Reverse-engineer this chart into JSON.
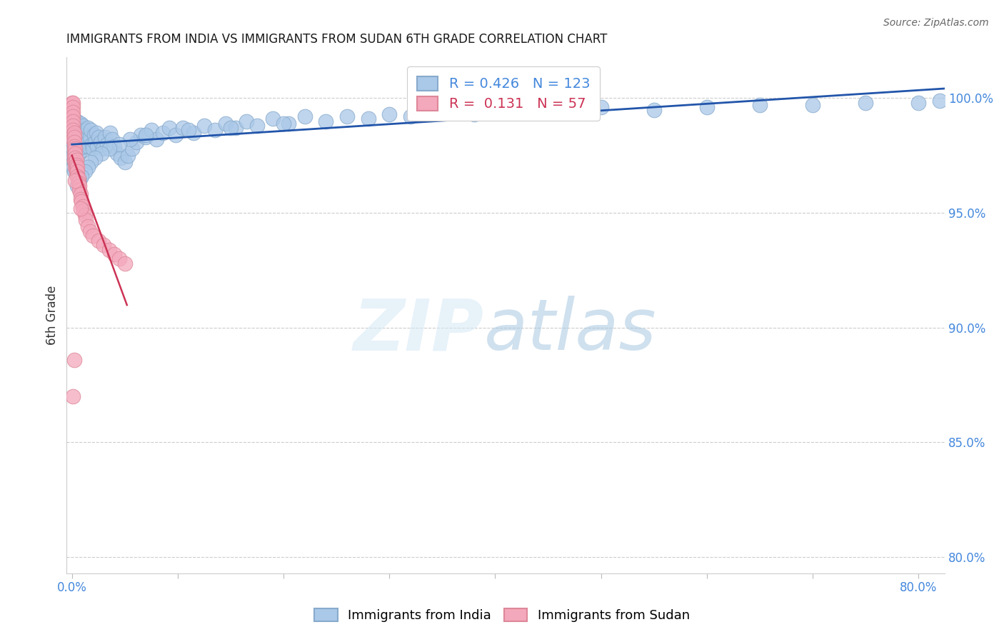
{
  "title": "IMMIGRANTS FROM INDIA VS IMMIGRANTS FROM SUDAN 6TH GRADE CORRELATION CHART",
  "source": "Source: ZipAtlas.com",
  "ylabel": "6th Grade",
  "india_R": 0.426,
  "india_N": 123,
  "sudan_R": 0.131,
  "sudan_N": 57,
  "india_color": "#aac8e8",
  "india_edge_color": "#88aacc",
  "sudan_color": "#f4a8bc",
  "sudan_edge_color": "#dd8899",
  "india_line_color": "#2255aa",
  "sudan_line_color": "#cc3355",
  "grid_color": "#cccccc",
  "title_color": "#1a1a1a",
  "tick_color": "#4488dd",
  "bg_color": "#ffffff",
  "xmin": 0.0,
  "xmax": 0.8,
  "ymin": 0.793,
  "ymax": 1.018,
  "yticks": [
    0.8,
    0.85,
    0.9,
    0.95,
    1.0
  ],
  "india_x": [
    0.001,
    0.001,
    0.001,
    0.001,
    0.001,
    0.002,
    0.002,
    0.002,
    0.002,
    0.002,
    0.002,
    0.002,
    0.003,
    0.003,
    0.003,
    0.003,
    0.003,
    0.004,
    0.004,
    0.004,
    0.004,
    0.004,
    0.005,
    0.005,
    0.005,
    0.005,
    0.006,
    0.006,
    0.006,
    0.006,
    0.007,
    0.007,
    0.007,
    0.008,
    0.008,
    0.008,
    0.009,
    0.009,
    0.01,
    0.01,
    0.01,
    0.011,
    0.011,
    0.012,
    0.012,
    0.013,
    0.014,
    0.015,
    0.015,
    0.016,
    0.017,
    0.018,
    0.019,
    0.02,
    0.021,
    0.022,
    0.023,
    0.024,
    0.025,
    0.027,
    0.029,
    0.031,
    0.033,
    0.036,
    0.038,
    0.04,
    0.043,
    0.046,
    0.05,
    0.053,
    0.057,
    0.061,
    0.065,
    0.07,
    0.075,
    0.08,
    0.086,
    0.092,
    0.098,
    0.105,
    0.115,
    0.125,
    0.135,
    0.145,
    0.155,
    0.165,
    0.175,
    0.19,
    0.205,
    0.22,
    0.24,
    0.26,
    0.28,
    0.3,
    0.32,
    0.35,
    0.38,
    0.42,
    0.46,
    0.5,
    0.55,
    0.6,
    0.65,
    0.7,
    0.75,
    0.8,
    0.82,
    0.48,
    0.2,
    0.15,
    0.11,
    0.07,
    0.055,
    0.045,
    0.035,
    0.028,
    0.022,
    0.018,
    0.015,
    0.012,
    0.009,
    0.007,
    0.005
  ],
  "india_y": [
    0.978,
    0.982,
    0.97,
    0.975,
    0.985,
    0.973,
    0.98,
    0.976,
    0.983,
    0.972,
    0.968,
    0.979,
    0.977,
    0.983,
    0.975,
    0.98,
    0.986,
    0.979,
    0.984,
    0.977,
    0.981,
    0.988,
    0.98,
    0.985,
    0.978,
    0.99,
    0.981,
    0.976,
    0.983,
    0.979,
    0.982,
    0.978,
    0.986,
    0.983,
    0.977,
    0.989,
    0.981,
    0.985,
    0.982,
    0.979,
    0.988,
    0.984,
    0.979,
    0.986,
    0.981,
    0.984,
    0.983,
    0.987,
    0.981,
    0.979,
    0.983,
    0.986,
    0.98,
    0.978,
    0.984,
    0.981,
    0.985,
    0.979,
    0.983,
    0.981,
    0.978,
    0.983,
    0.98,
    0.985,
    0.982,
    0.979,
    0.976,
    0.974,
    0.972,
    0.975,
    0.978,
    0.981,
    0.984,
    0.983,
    0.986,
    0.982,
    0.985,
    0.987,
    0.984,
    0.987,
    0.985,
    0.988,
    0.986,
    0.989,
    0.987,
    0.99,
    0.988,
    0.991,
    0.989,
    0.992,
    0.99,
    0.992,
    0.991,
    0.993,
    0.992,
    0.994,
    0.993,
    0.995,
    0.994,
    0.996,
    0.995,
    0.996,
    0.997,
    0.997,
    0.998,
    0.998,
    0.999,
    0.994,
    0.989,
    0.987,
    0.986,
    0.984,
    0.982,
    0.98,
    0.978,
    0.976,
    0.974,
    0.972,
    0.97,
    0.968,
    0.966,
    0.964,
    0.962
  ],
  "sudan_x": [
    0.0005,
    0.0005,
    0.0005,
    0.0005,
    0.0005,
    0.001,
    0.001,
    0.001,
    0.001,
    0.001,
    0.001,
    0.001,
    0.001,
    0.001,
    0.002,
    0.002,
    0.002,
    0.002,
    0.002,
    0.002,
    0.002,
    0.003,
    0.003,
    0.003,
    0.003,
    0.003,
    0.004,
    0.004,
    0.004,
    0.004,
    0.005,
    0.005,
    0.005,
    0.006,
    0.006,
    0.007,
    0.007,
    0.008,
    0.008,
    0.009,
    0.01,
    0.011,
    0.012,
    0.013,
    0.015,
    0.017,
    0.02,
    0.025,
    0.03,
    0.035,
    0.04,
    0.045,
    0.05,
    0.008,
    0.003,
    0.002,
    0.001
  ],
  "sudan_y": [
    0.998,
    0.996,
    0.994,
    0.992,
    0.99,
    0.998,
    0.996,
    0.994,
    0.992,
    0.99,
    0.988,
    0.986,
    0.984,
    0.982,
    0.985,
    0.983,
    0.981,
    0.979,
    0.977,
    0.975,
    0.973,
    0.978,
    0.976,
    0.974,
    0.972,
    0.97,
    0.973,
    0.971,
    0.969,
    0.967,
    0.97,
    0.968,
    0.966,
    0.965,
    0.963,
    0.962,
    0.96,
    0.958,
    0.956,
    0.955,
    0.953,
    0.951,
    0.949,
    0.947,
    0.944,
    0.942,
    0.94,
    0.938,
    0.936,
    0.934,
    0.932,
    0.93,
    0.928,
    0.952,
    0.964,
    0.886,
    0.87
  ]
}
